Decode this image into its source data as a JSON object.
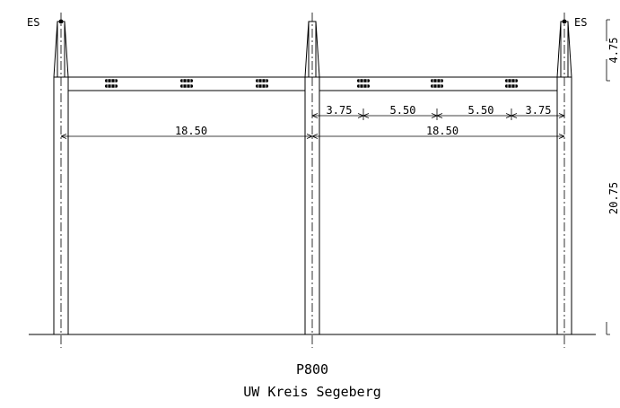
{
  "labels": {
    "earth_wire_left": "ES",
    "earth_wire_right": "ES"
  },
  "dimensions": {
    "upper_spacing": [
      "3.75",
      "5.50",
      "5.50",
      "3.75"
    ],
    "bay_left": "18.50",
    "bay_right": "18.50",
    "height_top": "4.75",
    "height_main": "20.75"
  },
  "title": {
    "line1": "P800",
    "line2": "UW Kreis Segeberg"
  },
  "icons": {
    "conductor_bundle": "insulator-bundle-icon",
    "earth_wire_point": "earth-wire-dot-icon"
  }
}
